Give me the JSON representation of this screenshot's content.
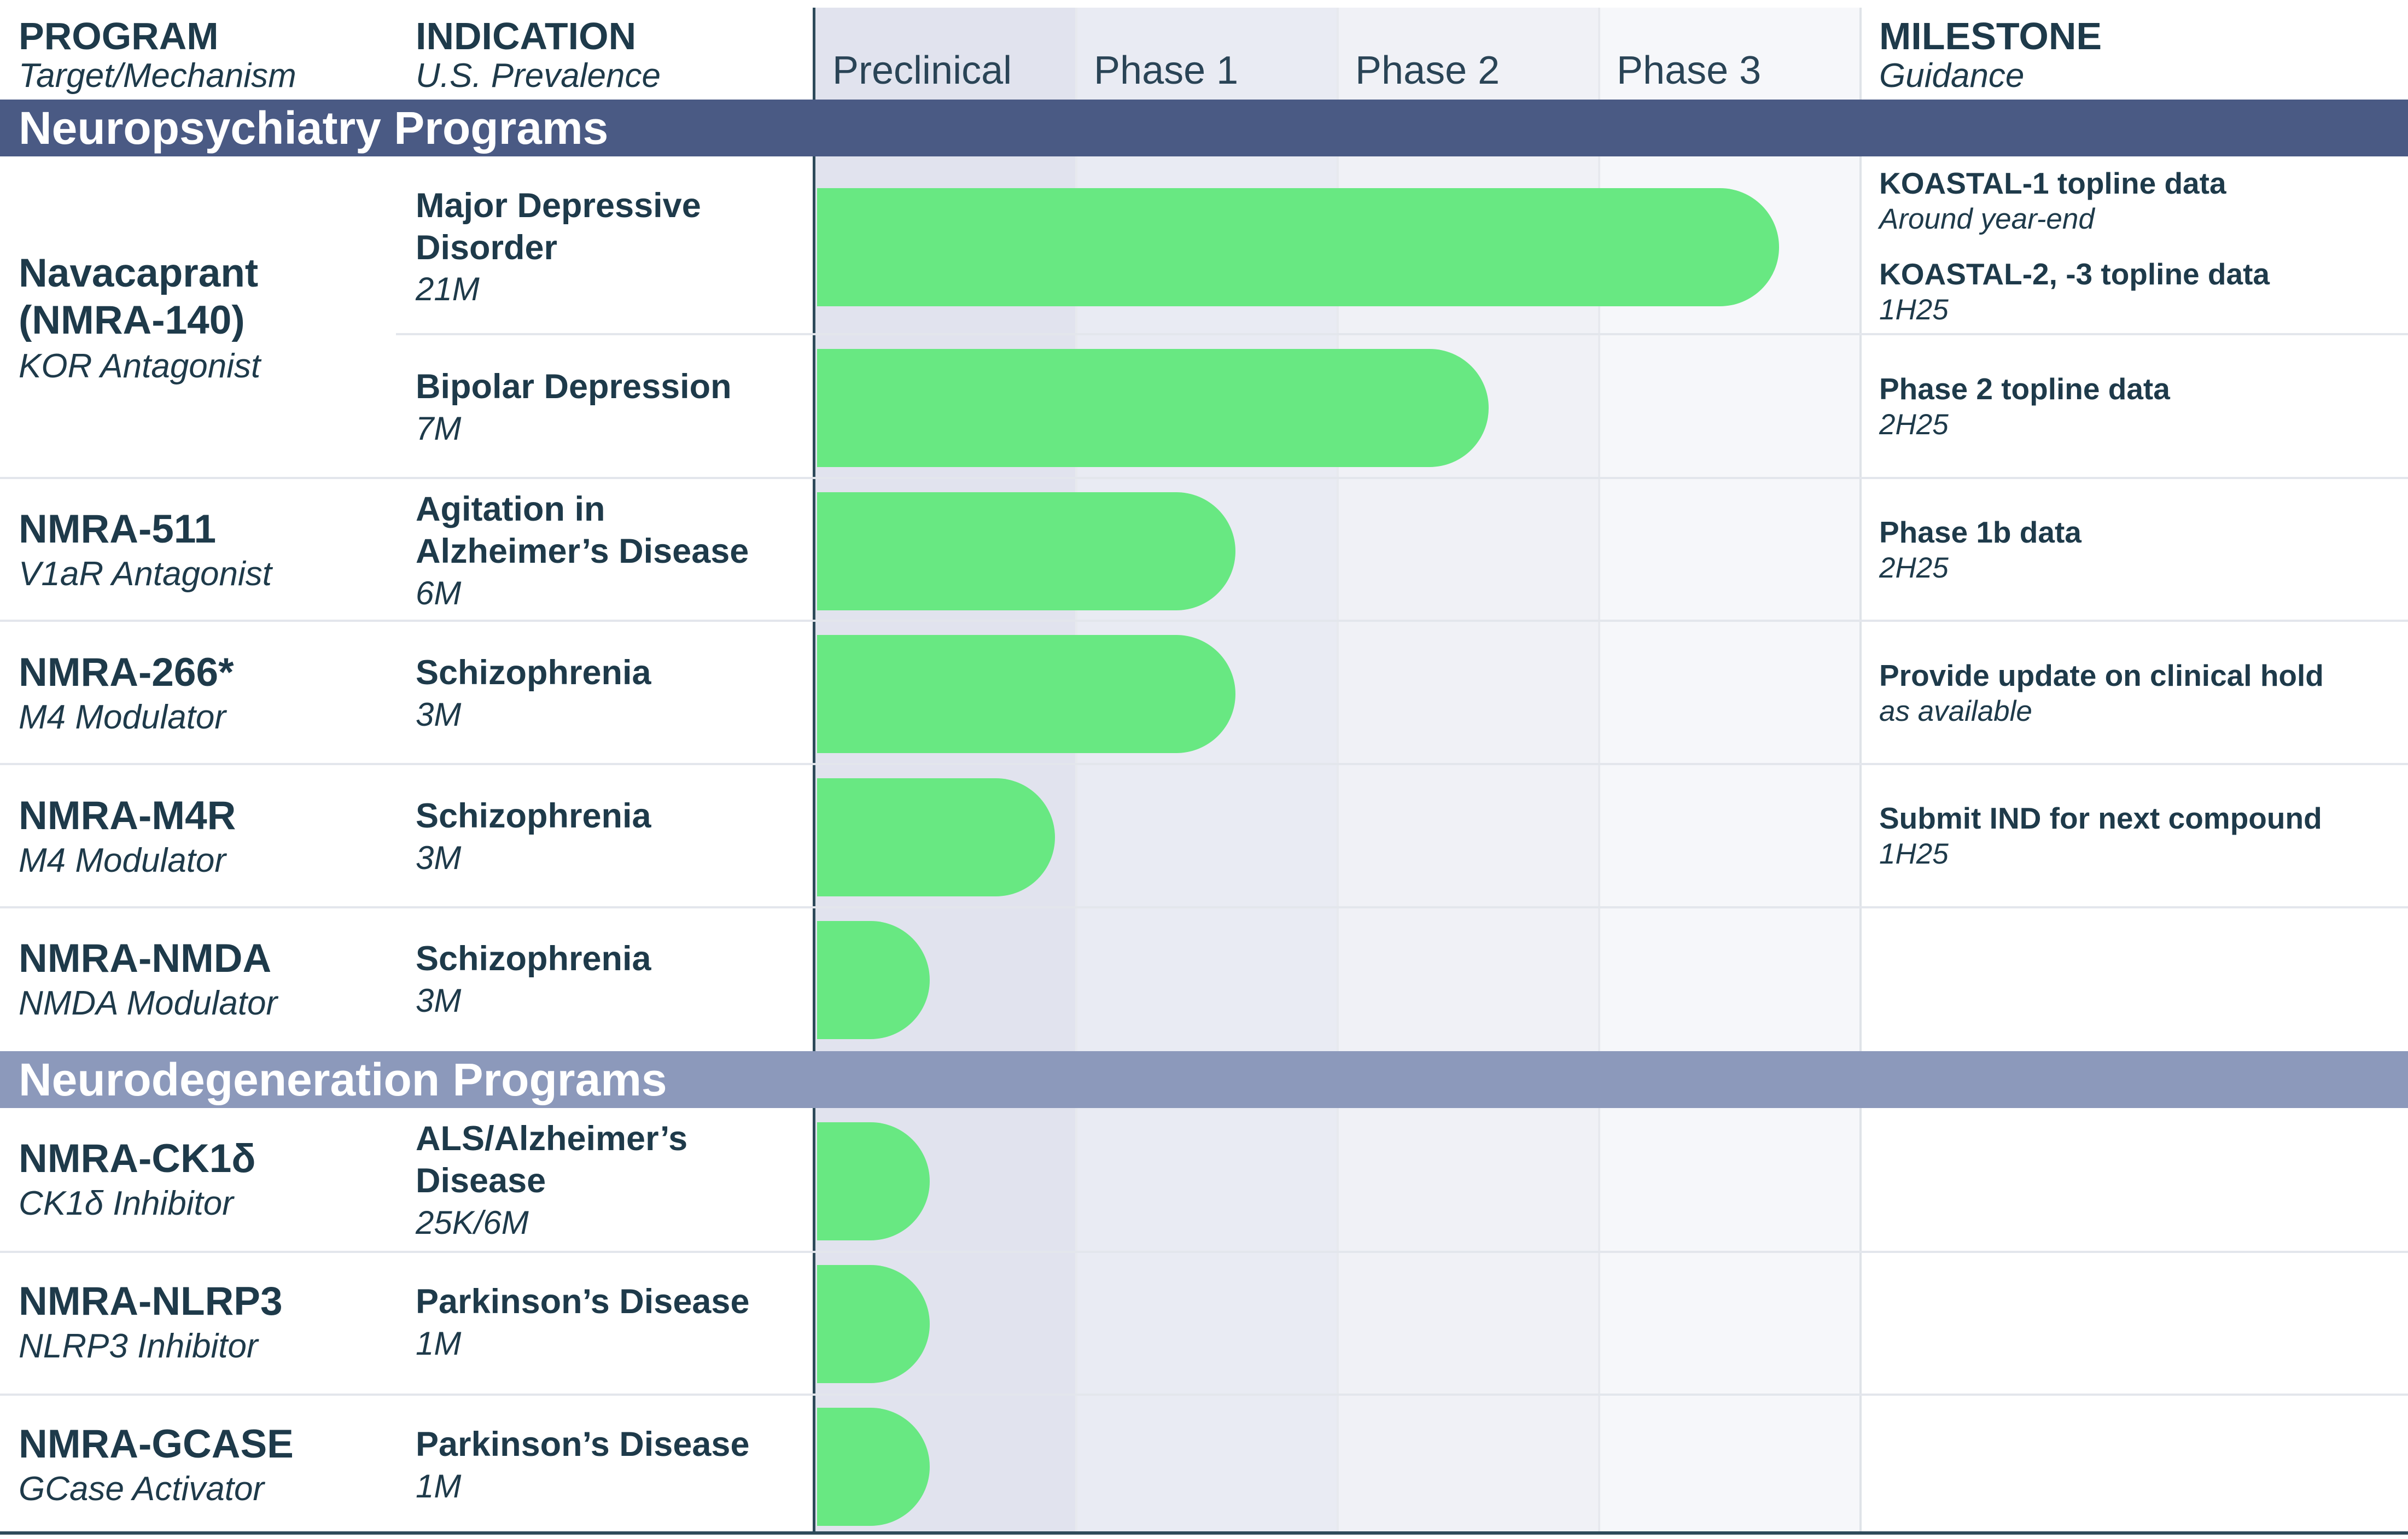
{
  "header": {
    "program": "PROGRAM",
    "program_sub": "Target/Mechanism",
    "indication": "INDICATION",
    "indication_sub": "U.S. Prevalence",
    "milestone": "MILESTONE",
    "milestone_sub": "Guidance",
    "phases": [
      "Preclinical",
      "Phase 1",
      "Phase 2",
      "Phase 3"
    ]
  },
  "sections": {
    "neuropsychiatry": "Neuropsychiatry Programs",
    "neurodegeneration": "Neurodegeneration Programs"
  },
  "programs": [
    {
      "name": "Navacaprant",
      "name2": "(NMRA-140)",
      "mechanism": "KOR Antagonist"
    },
    {
      "name": "NMRA-511",
      "mechanism": "V1aR Antagonist"
    },
    {
      "name": "NMRA-266*",
      "mechanism": "M4 Modulator"
    },
    {
      "name": "NMRA-M4R",
      "mechanism": "M4 Modulator"
    },
    {
      "name": "NMRA-NMDA",
      "mechanism": "NMDA Modulator"
    },
    {
      "name": "NMRA-CK1δ",
      "mechanism": "CK1δ Inhibitor"
    },
    {
      "name": "NMRA-NLRP3",
      "mechanism": "NLRP3 Inhibitor"
    },
    {
      "name": "NMRA-GCASE",
      "mechanism": "GCase Activator"
    }
  ],
  "indications": [
    {
      "line1": "Major Depressive",
      "line2": "Disorder",
      "prevalence": "21M"
    },
    {
      "line1": "Bipolar Depression",
      "prevalence": "7M"
    },
    {
      "line1": "Agitation in",
      "line2": "Alzheimer’s Disease",
      "prevalence": "6M"
    },
    {
      "line1": "Schizophrenia",
      "prevalence": "3M"
    },
    {
      "line1": "Schizophrenia",
      "prevalence": "3M"
    },
    {
      "line1": "Schizophrenia",
      "prevalence": "3M"
    },
    {
      "line1": "ALS/Alzheimer’s",
      "line2": "Disease",
      "prevalence": "25K/6M"
    },
    {
      "line1": "Parkinson’s Disease",
      "prevalence": "1M"
    },
    {
      "line1": "Parkinson’s Disease",
      "prevalence": "1M"
    }
  ],
  "progress": [
    3.68,
    2.57,
    1.6,
    1.6,
    0.91,
    0.43,
    0.43,
    0.43,
    0.43
  ],
  "milestones": [
    {
      "title": "KOASTAL-1 topline data",
      "timing": "Around year-end"
    },
    {
      "title": "KOASTAL-2, -3 topline data",
      "timing": "1H25"
    },
    {
      "title": "Phase 2 topline data",
      "timing": "2H25"
    },
    {
      "title": "Phase 1b data",
      "timing": "2H25"
    },
    {
      "title": "Provide update on clinical hold",
      "timing": "as available"
    },
    {
      "title": "Submit IND for next compound",
      "timing": "1H25"
    }
  ],
  "colors": {
    "bar": "#68e882",
    "section_neuropsychiatry": "#4a5a84",
    "section_neurodegeneration": "#8c99bb",
    "preclinical_bg": "#e1e3ee",
    "phase1_bg": "#e9ebf3",
    "phase2_bg": "#f0f1f6",
    "phase3_bg": "#f6f7fa",
    "text": "#1e3a4a"
  }
}
